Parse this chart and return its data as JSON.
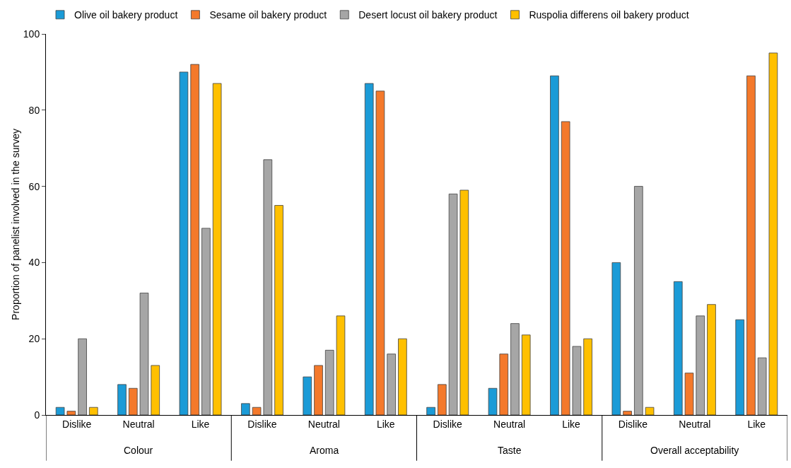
{
  "chart_data": {
    "type": "bar",
    "ylabel": "Proportion of panelist involved in the survey",
    "categories": [
      "Dislike",
      "Neutral",
      "Like",
      "Dislike",
      "Neutral",
      "Like",
      "Dislike",
      "Neutral",
      "Like",
      "Dislike",
      "Neutral",
      "Like"
    ],
    "series": [
      {
        "name": "Olive oil bakery product",
        "color": "#1b9bd7",
        "values": [
          2,
          8,
          90,
          3,
          10,
          87,
          2,
          7,
          89,
          40,
          35,
          25
        ]
      },
      {
        "name": "Sesame oil bakery product",
        "color": "#f4792b",
        "values": [
          1,
          7,
          92,
          2,
          13,
          85,
          8,
          16,
          77,
          1,
          11,
          89
        ]
      },
      {
        "name": "Desert locust oil bakery product",
        "color": "#a6a6a6",
        "values": [
          20,
          32,
          49,
          67,
          17,
          16,
          58,
          24,
          18,
          60,
          26,
          15
        ]
      },
      {
        "name": "Ruspolia differens oil bakery product",
        "color": "#ffc000",
        "values": [
          2,
          13,
          87,
          55,
          26,
          20,
          59,
          21,
          20,
          2,
          29,
          95
        ]
      }
    ],
    "annotations": [
      "Colour",
      "Aroma",
      "Taste",
      "Overall acceptability"
    ],
    "ylim": [
      0,
      100
    ],
    "yticks": [
      0,
      20,
      40,
      60,
      80,
      100
    ],
    "grid": false,
    "legend": "top"
  }
}
